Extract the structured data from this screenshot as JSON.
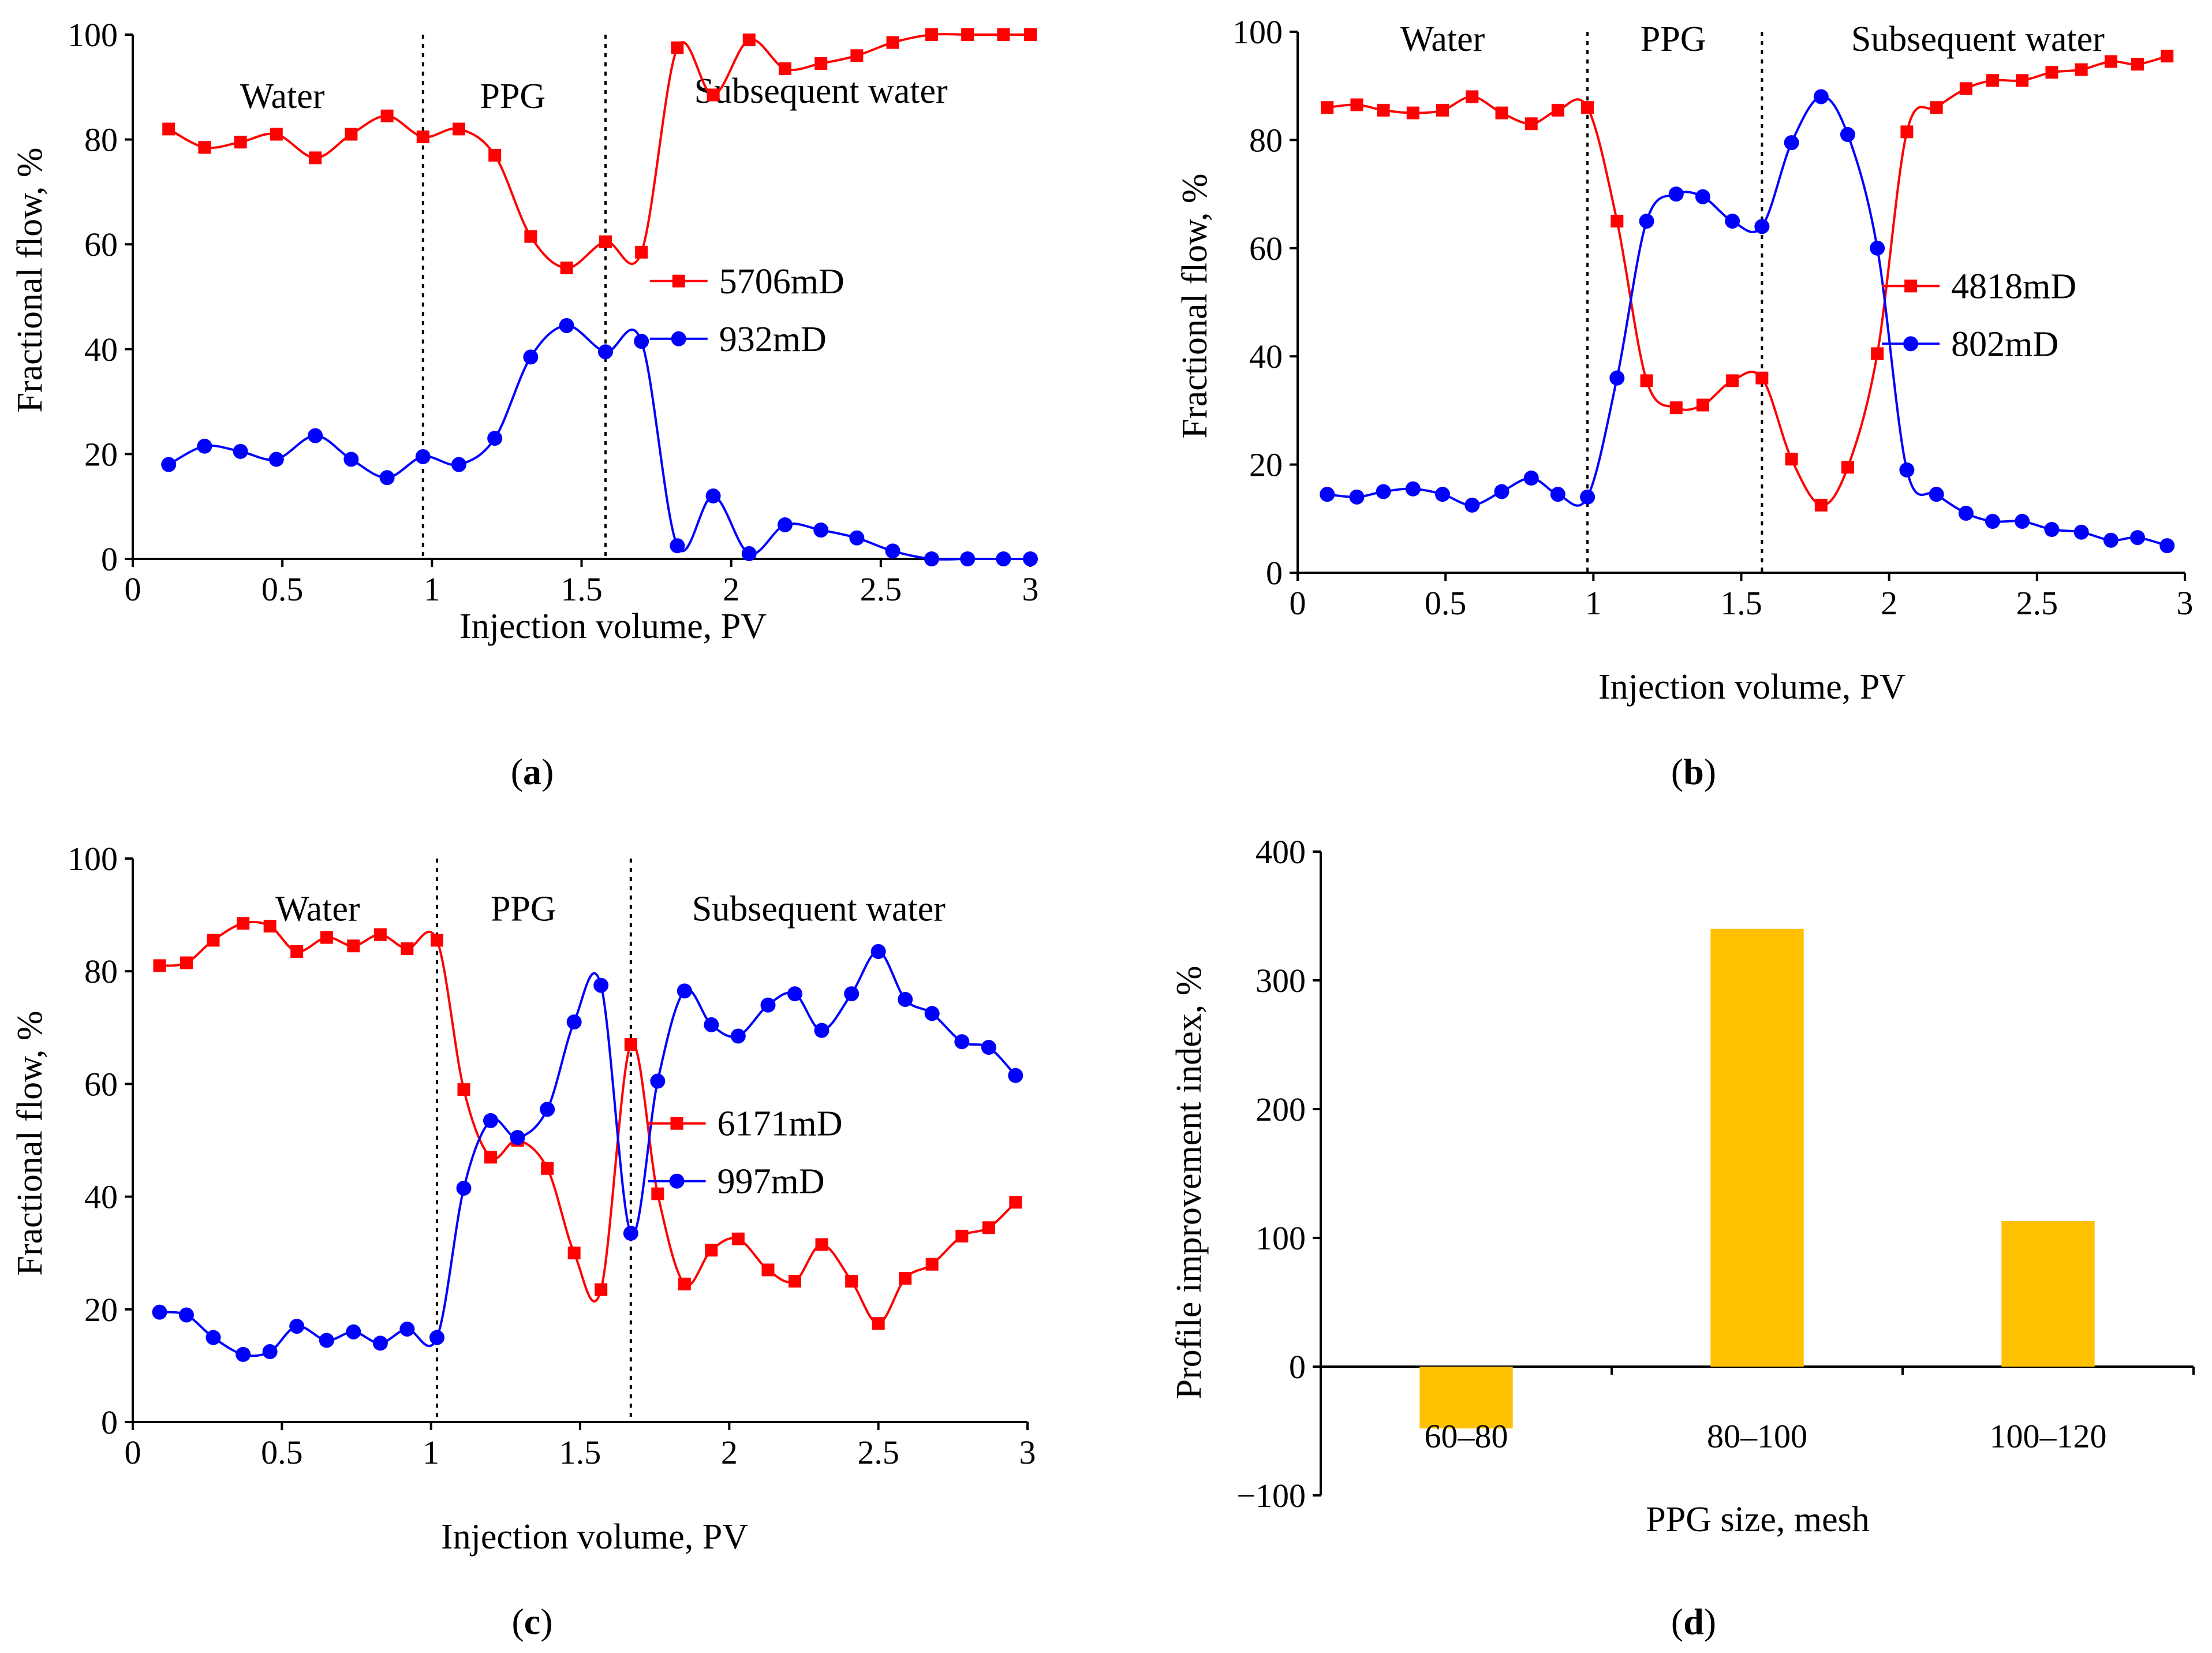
{
  "colors": {
    "red": "#ff0000",
    "blue": "#0000ff",
    "bar": "#ffc000"
  },
  "chart_data": [
    {
      "id": "a",
      "type": "line",
      "caption": "a",
      "xlabel": "Injection volume, PV",
      "ylabel": "Fractional flow, %",
      "xlim": [
        0,
        3
      ],
      "ylim": [
        0,
        100
      ],
      "xticks": [
        "0",
        "0.5",
        "1",
        "1.5",
        "2",
        "2.5",
        "3"
      ],
      "yticks": [
        "0",
        "20",
        "40",
        "60",
        "80",
        "100"
      ],
      "dividers": [
        0.97,
        1.58
      ],
      "regions": [
        {
          "label": "Water",
          "x": 0.5,
          "y": 86
        },
        {
          "label": "PPG",
          "x": 1.27,
          "y": 86
        },
        {
          "label": "Subsequent water",
          "x": 2.3,
          "y": 87
        }
      ],
      "legend": {
        "x": 1.95,
        "y": 53
      },
      "series": [
        {
          "name": "5706mD",
          "color": "red",
          "marker": "square",
          "x": [
            0.12,
            0.24,
            0.36,
            0.48,
            0.61,
            0.73,
            0.85,
            0.97,
            1.09,
            1.21,
            1.33,
            1.45,
            1.58,
            1.7,
            1.82,
            1.94,
            2.06,
            2.18,
            2.3,
            2.42,
            2.54,
            2.67,
            2.79,
            2.91,
            3.0
          ],
          "y": [
            82,
            78.5,
            79.5,
            81,
            76.5,
            81,
            84.5,
            80.5,
            82,
            77,
            61.5,
            55.5,
            60.5,
            58.5,
            97.5,
            88.5,
            99,
            93.5,
            94.5,
            96,
            98.5,
            100,
            100,
            100,
            100
          ]
        },
        {
          "name": "932mD",
          "color": "blue",
          "marker": "circle",
          "x": [
            0.12,
            0.24,
            0.36,
            0.48,
            0.61,
            0.73,
            0.85,
            0.97,
            1.09,
            1.21,
            1.33,
            1.45,
            1.58,
            1.7,
            1.82,
            1.94,
            2.06,
            2.18,
            2.3,
            2.42,
            2.54,
            2.67,
            2.79,
            2.91,
            3.0
          ],
          "y": [
            18,
            21.5,
            20.5,
            19,
            23.5,
            19,
            15.5,
            19.5,
            18,
            23,
            38.5,
            44.5,
            39.5,
            41.5,
            2.5,
            12,
            1,
            6.5,
            5.5,
            4,
            1.5,
            0,
            0,
            0,
            0
          ]
        }
      ]
    },
    {
      "id": "b",
      "type": "line",
      "caption": "b",
      "xlabel": "Injection volume, PV",
      "ylabel": "Fractional flow, %",
      "xlim": [
        0,
        3
      ],
      "ylim": [
        0,
        100
      ],
      "xticks": [
        "0",
        "0.5",
        "1",
        "1.5",
        "2",
        "2.5",
        "3"
      ],
      "yticks": [
        "0",
        "20",
        "40",
        "60",
        "80",
        "100"
      ],
      "dividers": [
        0.98,
        1.57
      ],
      "regions": [
        {
          "label": "Water",
          "x": 0.49,
          "y": 96.5
        },
        {
          "label": "PPG",
          "x": 1.27,
          "y": 96.5
        },
        {
          "label": "Subsequent water",
          "x": 2.3,
          "y": 96.5
        }
      ],
      "legend": {
        "x": 2.2,
        "y": 53
      },
      "series": [
        {
          "name": "4818mD",
          "color": "red",
          "marker": "square",
          "x": [
            0.1,
            0.2,
            0.29,
            0.39,
            0.49,
            0.59,
            0.69,
            0.79,
            0.88,
            0.98,
            1.08,
            1.18,
            1.28,
            1.37,
            1.47,
            1.57,
            1.67,
            1.77,
            1.86,
            1.96,
            2.06,
            2.16,
            2.26,
            2.35,
            2.45,
            2.55,
            2.65,
            2.75,
            2.84,
            2.94
          ],
          "y": [
            86,
            86.5,
            85.5,
            85,
            85.5,
            88,
            85,
            83,
            85.5,
            86,
            65,
            35.5,
            30.5,
            31,
            35.5,
            36,
            21,
            12.5,
            19.5,
            40.5,
            81.5,
            86,
            89.5,
            91,
            91,
            92.5,
            93,
            94.5,
            94,
            95.5
          ]
        },
        {
          "name": "802mD",
          "color": "blue",
          "marker": "circle",
          "x": [
            0.1,
            0.2,
            0.29,
            0.39,
            0.49,
            0.59,
            0.69,
            0.79,
            0.88,
            0.98,
            1.08,
            1.18,
            1.28,
            1.37,
            1.47,
            1.57,
            1.67,
            1.77,
            1.86,
            1.96,
            2.06,
            2.16,
            2.26,
            2.35,
            2.45,
            2.55,
            2.65,
            2.75,
            2.84,
            2.94
          ],
          "y": [
            14.5,
            14,
            15,
            15.5,
            14.5,
            12.5,
            15,
            17.5,
            14.5,
            14,
            36,
            65,
            70,
            69.5,
            65,
            64,
            79.5,
            88,
            81,
            60,
            19,
            14.5,
            11,
            9.5,
            9.5,
            8,
            7.5,
            6,
            6.5,
            5
          ]
        }
      ]
    },
    {
      "id": "c",
      "type": "line",
      "caption": "c",
      "xlabel": "Injection volume, PV",
      "ylabel": "Fractional flow, %",
      "xlim": [
        0,
        3
      ],
      "ylim": [
        0,
        100
      ],
      "xticks": [
        "0",
        "0.5",
        "1",
        "1.5",
        "2",
        "2.5",
        "3"
      ],
      "yticks": [
        "0",
        "20",
        "40",
        "60",
        "80",
        "100"
      ],
      "dividers": [
        1.02,
        1.67
      ],
      "regions": [
        {
          "label": "Water",
          "x": 0.62,
          "y": 89
        },
        {
          "label": "PPG",
          "x": 1.31,
          "y": 89
        },
        {
          "label": "Subsequent water",
          "x": 2.3,
          "y": 89
        }
      ],
      "legend": {
        "x": 1.95,
        "y": 53
      },
      "series": [
        {
          "name": "6171mD",
          "color": "red",
          "marker": "square",
          "x": [
            0.09,
            0.18,
            0.27,
            0.37,
            0.46,
            0.55,
            0.65,
            0.74,
            0.83,
            0.92,
            1.02,
            1.11,
            1.2,
            1.29,
            1.39,
            1.48,
            1.57,
            1.67,
            1.76,
            1.85,
            1.94,
            2.03,
            2.13,
            2.22,
            2.31,
            2.41,
            2.5,
            2.59,
            2.68,
            2.78,
            2.87,
            2.96
          ],
          "y": [
            81,
            81.5,
            85.5,
            88.5,
            88,
            83.5,
            86,
            84.5,
            86.5,
            84,
            85.5,
            59,
            47,
            50,
            45,
            30,
            23.5,
            67,
            40.5,
            24.5,
            30.5,
            32.5,
            27,
            25,
            31.5,
            25,
            17.5,
            25.5,
            28,
            33,
            34.5,
            39
          ]
        },
        {
          "name": "997mD",
          "color": "blue",
          "marker": "circle",
          "x": [
            0.09,
            0.18,
            0.27,
            0.37,
            0.46,
            0.55,
            0.65,
            0.74,
            0.83,
            0.92,
            1.02,
            1.11,
            1.2,
            1.29,
            1.39,
            1.48,
            1.57,
            1.67,
            1.76,
            1.85,
            1.94,
            2.03,
            2.13,
            2.22,
            2.31,
            2.41,
            2.5,
            2.59,
            2.68,
            2.78,
            2.87,
            2.96
          ],
          "y": [
            19.5,
            19,
            15,
            12,
            12.5,
            17,
            14.5,
            16,
            14,
            16.5,
            15,
            41.5,
            53.5,
            50.5,
            55.5,
            71,
            77.5,
            33.5,
            60.5,
            76.5,
            70.5,
            68.5,
            74,
            76,
            69.5,
            76,
            83.5,
            75,
            72.5,
            67.5,
            66.5,
            61.5
          ]
        }
      ]
    },
    {
      "id": "d",
      "type": "bar",
      "caption": "d",
      "xlabel": "PPG size, mesh",
      "ylabel": "Profile improvement index, %",
      "ylim": [
        -100,
        400
      ],
      "yticks": [
        "400",
        "300",
        "200",
        "100",
        "0",
        "−100"
      ],
      "categories": [
        "60–80",
        "80–100",
        "100–120"
      ],
      "values": [
        -48,
        340,
        113
      ]
    }
  ]
}
